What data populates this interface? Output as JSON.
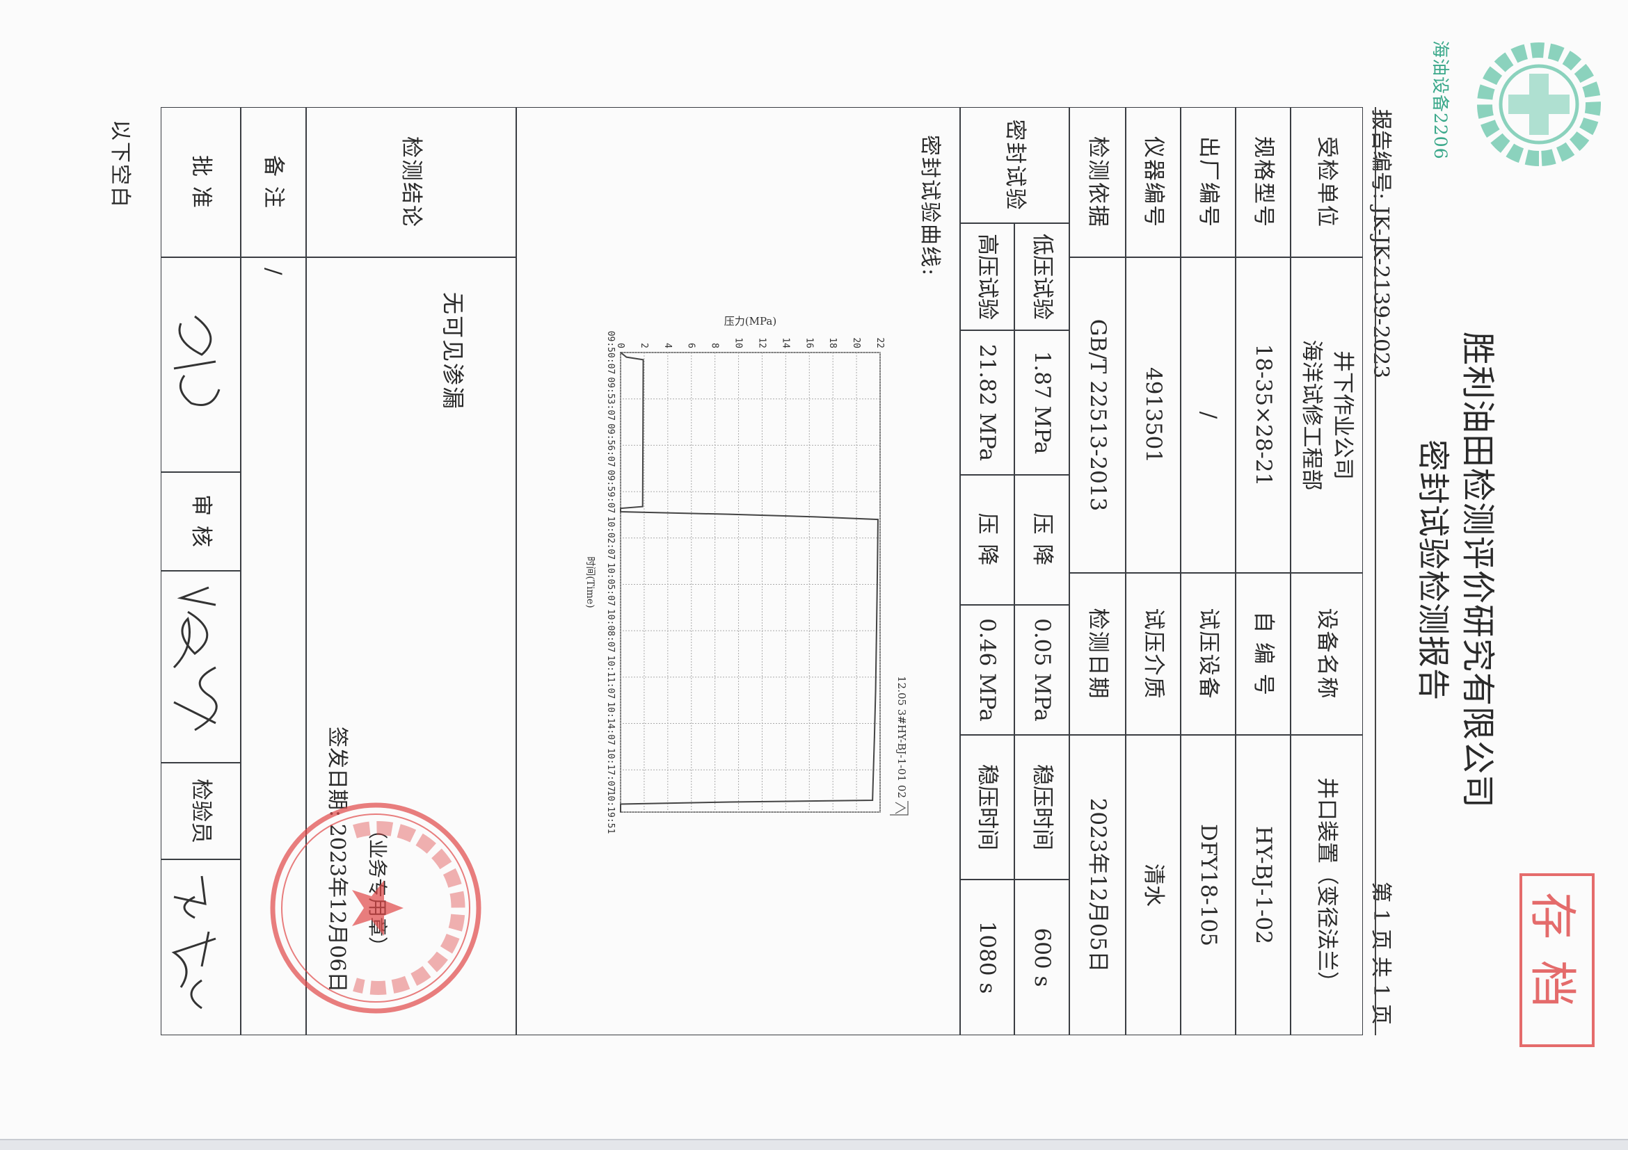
{
  "header": {
    "company": "胜利油田检测评价研究有限公司",
    "title": "密封试验检测报告",
    "report_no": "报告编号: JK-JK-2139-2023",
    "page_info": "第 1 页 共 1 页",
    "logo_text": "海油设备2206",
    "archive_stamp": "存档"
  },
  "info_rows": [
    {
      "label": "受检单位",
      "value": "井下作业公司\n海洋试修工程部",
      "label2": "设备名称",
      "value2": "井口装置（变径法兰）"
    },
    {
      "label": "规格型号",
      "value": "18-35×28-21",
      "label2": "自 编 号",
      "value2": "HY-BJ-1-02"
    },
    {
      "label": "出厂编号",
      "value": "/",
      "label2": "试压设备",
      "value2": "DFY18-105"
    },
    {
      "label": "仪器编号",
      "value": "4913501",
      "label2": "试压介质",
      "value2": "清水"
    },
    {
      "label": "检测依据",
      "value": "GB/T 22513-2013",
      "label2": "检测日期",
      "value2": "2023年12月05日"
    }
  ],
  "seal_test": {
    "label": "密封试验",
    "rows": [
      {
        "name": "低压试验",
        "pressure": "1.87 MPa",
        "drop_label": "压 降",
        "drop": "0.05 MPa",
        "hold_label": "稳压时间",
        "hold": "600 s"
      },
      {
        "name": "高压试验",
        "pressure": "21.82 MPa",
        "drop_label": "压 降",
        "drop": "0.46 MPa",
        "hold_label": "稳压时间",
        "hold": "1080 s"
      }
    ]
  },
  "curve_label": "密封试验曲线:",
  "conclusion": {
    "label": "检测结论",
    "value": "无可见渗漏",
    "seal_note": "（业务专用章）",
    "issue_date": "签发日期: 2023年12月06日"
  },
  "remark": {
    "label": "备 注",
    "value": "/"
  },
  "signoff": {
    "approve": "批 准",
    "review": "审 核",
    "inspector": "检验员"
  },
  "blank_note": "以下空白",
  "colors": {
    "stamp_red": "#e05252",
    "logo_green": "#3aa88a",
    "ink": "#2a2a2a"
  },
  "chart_data": {
    "type": "line",
    "title": "12.05 3#HY-BJ-1-01 02",
    "xlabel": "时间(Time)",
    "ylabel": "压力(MPa)",
    "ylim": [
      0,
      22
    ],
    "yticks": [
      0,
      2,
      4,
      6,
      8,
      10,
      12,
      14,
      16,
      18,
      20,
      22
    ],
    "xlim": [
      "09:50:07",
      "10:19:51"
    ],
    "xticks": [
      "09:50:07",
      "09:53:07",
      "09:56:07",
      "09:59:07",
      "10:02:07",
      "10:05:07",
      "10:08:07",
      "10:11:07",
      "10:14:07",
      "10:17:07",
      "10:19:51"
    ],
    "grid": true,
    "x": [
      "09:50:07",
      "09:50:25",
      "09:50:35",
      "09:55:00",
      "10:00:05",
      "10:00:12",
      "10:00:25",
      "10:00:35",
      "10:00:45",
      "10:00:55",
      "10:03:00",
      "10:06:00",
      "10:09:00",
      "10:12:00",
      "10:15:00",
      "10:18:00",
      "10:19:05",
      "10:19:12",
      "10:19:20",
      "10:19:51"
    ],
    "y": [
      0,
      0.5,
      1.92,
      1.9,
      1.87,
      0,
      0,
      9.2,
      16.5,
      21.82,
      21.79,
      21.74,
      21.68,
      21.62,
      21.52,
      21.4,
      21.36,
      9.3,
      0,
      0
    ]
  }
}
